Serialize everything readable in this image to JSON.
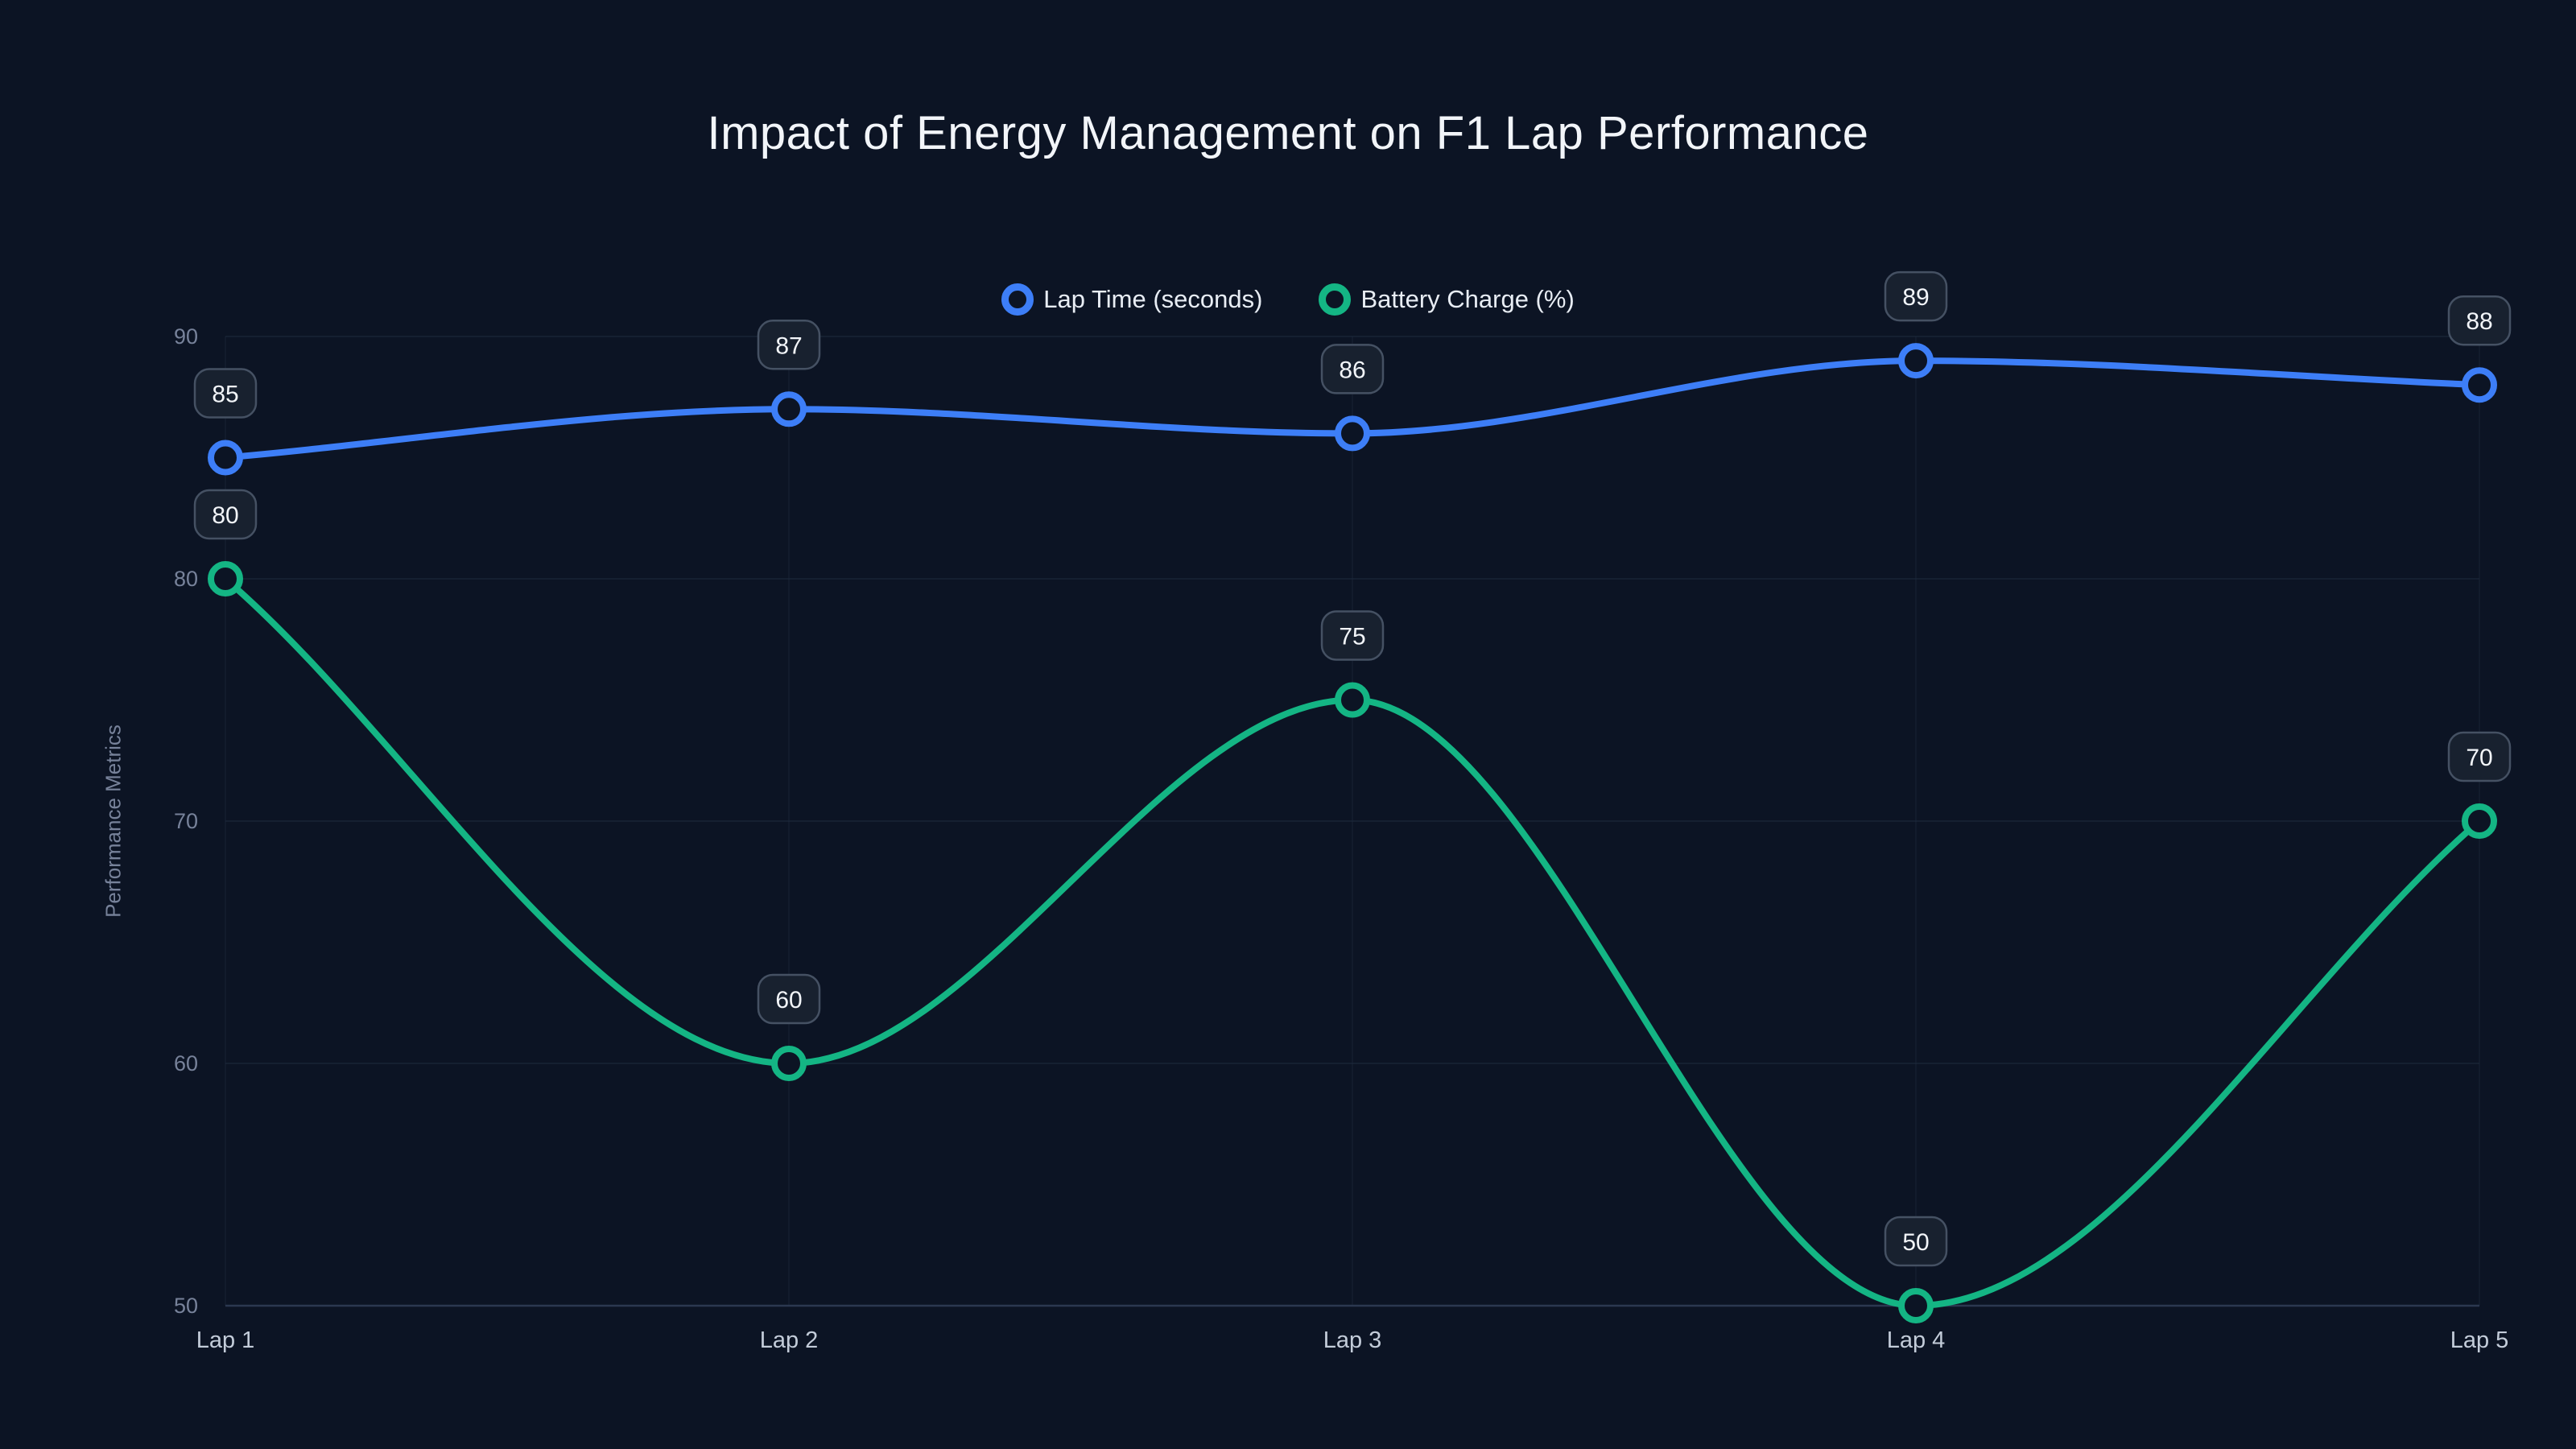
{
  "chart_data": {
    "type": "line",
    "title": "Impact of Energy Management on F1 Lap Performance",
    "ylabel": "Performance Metrics",
    "categories": [
      "Lap 1",
      "Lap 2",
      "Lap 3",
      "Lap 4",
      "Lap 5"
    ],
    "series": [
      {
        "name": "Lap Time (seconds)",
        "color": "#3d7ef7",
        "values": [
          85,
          87,
          86,
          89,
          88
        ]
      },
      {
        "name": "Battery Charge (%)",
        "color": "#14b584",
        "values": [
          80,
          60,
          75,
          50,
          70
        ]
      }
    ],
    "y_ticks": [
      90,
      80,
      70,
      60,
      50
    ],
    "ylim": [
      50,
      90
    ],
    "smooth": true,
    "grid": true,
    "data_labels": true,
    "legend_position": "top-center"
  },
  "colors": {
    "background": "#0c1424",
    "grid": "#1e2a3d",
    "axis_line": "#2b3850",
    "badge_bg": "#18212f",
    "badge_border": "#455163",
    "text_primary": "#f2f5f9",
    "text_secondary": "#77829a",
    "x_label": "#c3ccd9"
  }
}
